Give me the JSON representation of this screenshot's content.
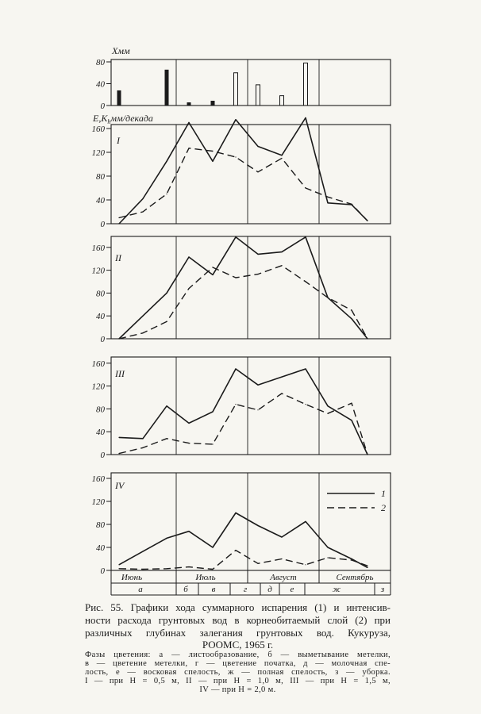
{
  "style": {
    "ink": "#1b1b1b",
    "paper": "#f7f6f1"
  },
  "chart_data": [
    {
      "type": "bar",
      "ylabel": "Xмм",
      "ylim": [
        0,
        80
      ],
      "yticks": [
        0,
        40,
        80
      ],
      "values": [
        27,
        0,
        65,
        5,
        8,
        60,
        38,
        18,
        78,
        0,
        0,
        0
      ],
      "bar_fill": [
        "solid",
        "solid",
        "solid",
        "solid",
        "solid",
        "outline",
        "outline",
        "outline",
        "outline",
        "outline",
        "outline",
        "outline"
      ]
    },
    {
      "type": "line",
      "panel": "I",
      "ylabel": {
        "text": "E,K",
        "sub": "h",
        "unit": "мм/декада"
      },
      "ylim": [
        0,
        160
      ],
      "yticks": [
        0,
        40,
        80,
        120,
        160
      ],
      "series": [
        {
          "style": "solid",
          "values": [
            0,
            42,
            105,
            170,
            105,
            175,
            130,
            115,
            178,
            35,
            32,
            5
          ]
        },
        {
          "style": "dashed",
          "values": [
            10,
            20,
            50,
            127,
            122,
            112,
            87,
            110,
            60,
            45,
            33,
            5
          ]
        }
      ]
    },
    {
      "type": "line",
      "panel": "II",
      "ylim": [
        0,
        160
      ],
      "yticks": [
        0,
        40,
        80,
        120,
        160
      ],
      "series": [
        {
          "style": "solid",
          "values": [
            0,
            40,
            80,
            143,
            112,
            178,
            148,
            152,
            178,
            72,
            35,
            0
          ]
        },
        {
          "style": "dashed",
          "values": [
            0,
            10,
            30,
            88,
            125,
            107,
            113,
            128,
            100,
            72,
            50,
            0
          ]
        }
      ]
    },
    {
      "type": "line",
      "panel": "III",
      "ylim": [
        0,
        160
      ],
      "yticks": [
        0,
        40,
        80,
        120,
        160
      ],
      "series": [
        {
          "style": "solid",
          "values": [
            30,
            28,
            85,
            55,
            75,
            150,
            122,
            136,
            150,
            85,
            60,
            0
          ]
        },
        {
          "style": "dashed",
          "values": [
            2,
            12,
            28,
            20,
            18,
            88,
            78,
            107,
            88,
            72,
            90,
            0
          ]
        }
      ]
    },
    {
      "type": "line",
      "panel": "IV",
      "ylim": [
        0,
        160
      ],
      "yticks": [
        0,
        40,
        80,
        120,
        160
      ],
      "legend": "top-right",
      "series": [
        {
          "name": "1",
          "style": "solid",
          "values": [
            10,
            33,
            56,
            68,
            40,
            100,
            78,
            58,
            85,
            40,
            20,
            5
          ]
        },
        {
          "name": "2",
          "style": "dashed",
          "values": [
            3,
            2,
            3,
            6,
            2,
            35,
            12,
            20,
            10,
            22,
            18,
            8
          ]
        }
      ]
    }
  ],
  "x_axis": {
    "months": [
      "Июнь",
      "Июль",
      "Август",
      "Сентябрь"
    ],
    "phases": [
      "а",
      "б",
      "в",
      "г",
      "д",
      "е",
      "ж",
      "з"
    ]
  },
  "figure": {
    "caption": [
      "Рис. 55. Графики хода суммарного испарения (1) и интенсив-",
      "ности расхода грунтовых вод в корнеобитаемый слой (2) при",
      "различных глубинах залегания грунтовых вод. Кукуруза,",
      "РООМС, 1965 г."
    ],
    "notes": [
      "Фазы цветения: а — листообразование, б — выметывание метелки,",
      "в — цветение метелки, г — цветение початка, д — молочная спе-",
      "лость, е — восковая спелость, ж — полная спелость, з — уборка.",
      "I — при H = 0,5 м, II — при H = 1,0 м, III — при H = 1,5 м,",
      "IV — при H = 2,0 м."
    ]
  }
}
